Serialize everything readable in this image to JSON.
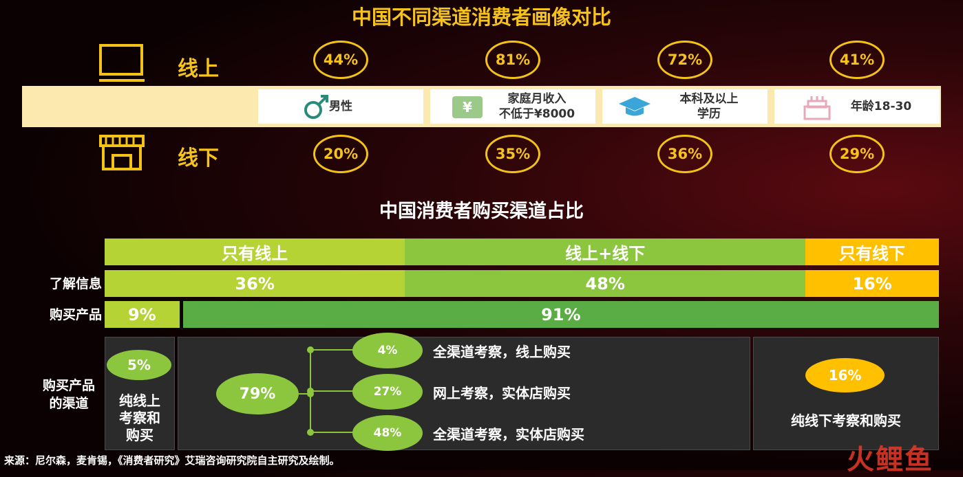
{
  "title": "中国不同渠道消费者画像对比",
  "profile": {
    "online_label": "线上",
    "offline_label": "线下",
    "attributes": [
      {
        "lines": [
          "男性"
        ],
        "online": "44%",
        "offline": "20%"
      },
      {
        "lines": [
          "家庭月收入",
          "不低于¥8000"
        ],
        "online": "81%",
        "offline": "35%"
      },
      {
        "lines": [
          "本科及以上",
          "学历"
        ],
        "online": "72%",
        "offline": "36%"
      },
      {
        "lines": [
          "年龄18-30"
        ],
        "online": "41%",
        "offline": "29%"
      }
    ]
  },
  "channel": {
    "title": "中国消费者购买渠道占比",
    "headers": [
      "只有线上",
      "线上+线下",
      "只有线下"
    ],
    "rows": [
      {
        "label": "了解信息",
        "segments": [
          {
            "value": 36,
            "label": "36%"
          },
          {
            "value": 48,
            "label": "48%"
          },
          {
            "value": 16,
            "label": "16%"
          }
        ]
      },
      {
        "label": "购买产品",
        "segments": [
          {
            "value": 9,
            "label": "9%"
          },
          {
            "value": 91,
            "label": "91%"
          }
        ]
      }
    ],
    "purchase": {
      "label": [
        "购买产品",
        "的渠道"
      ],
      "online_only": {
        "value": "5%",
        "lines": [
          "纯线上",
          "考察和",
          "购买"
        ]
      },
      "mixed": {
        "value": "79%",
        "branches": [
          {
            "value": "4%",
            "label": "全渠道考察，线上购买"
          },
          {
            "value": "27%",
            "label": "网上考察，实体店购买"
          },
          {
            "value": "48%",
            "label": "全渠道考察，实体店购买"
          }
        ]
      },
      "offline_only": {
        "value": "16%",
        "label": "纯线下考察和购买"
      }
    }
  },
  "source": "来源：尼尔森，麦肯锡，《消费者研究》艾瑞咨询研究院自主研究及绘制。",
  "watermark": "火鲤鱼"
}
